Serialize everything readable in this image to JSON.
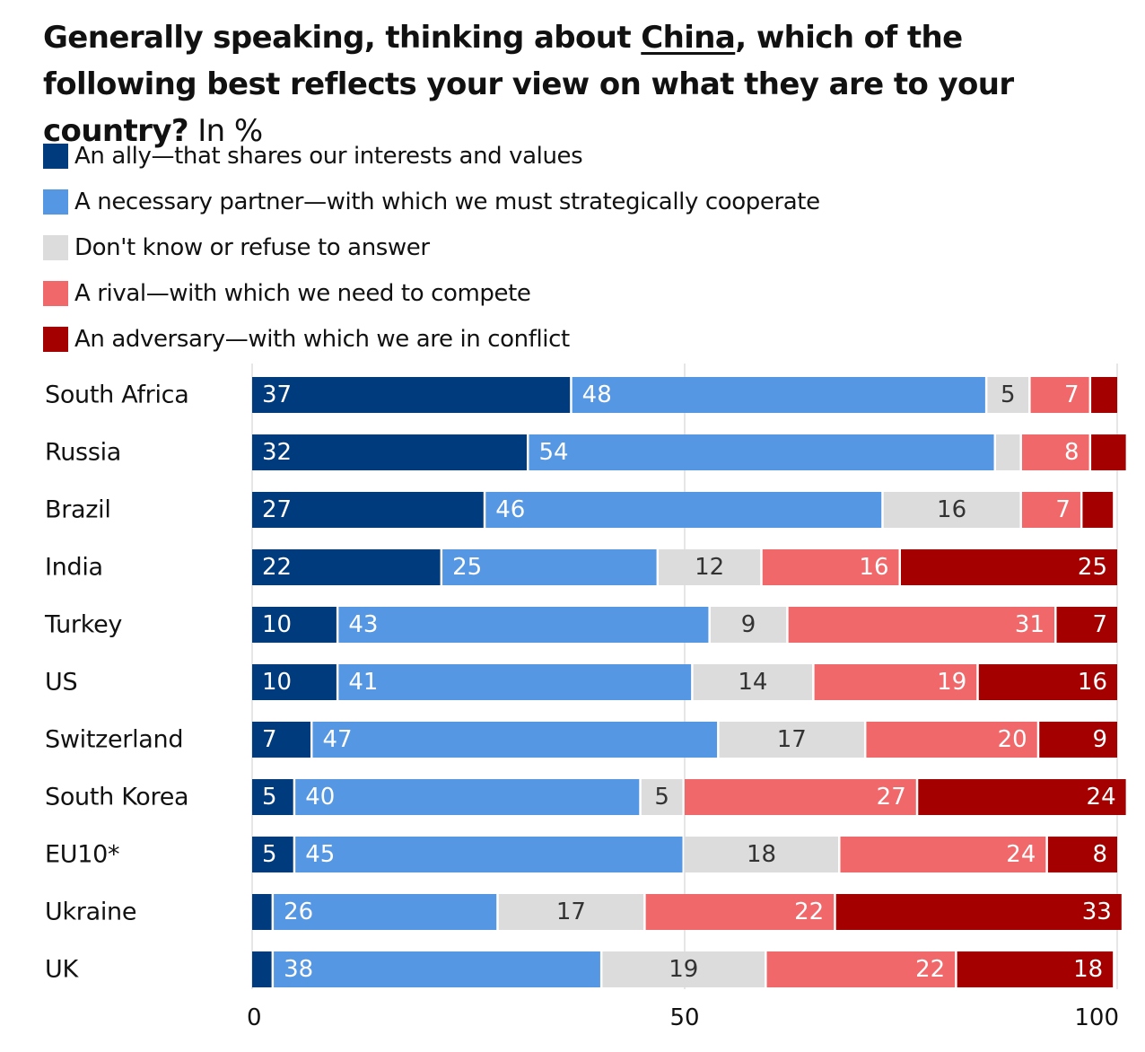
{
  "chart_data": {
    "type": "bar",
    "orientation": "horizontal",
    "stacked": true,
    "title_parts": {
      "before": "Generally speaking, thinking about ",
      "highlight": "China",
      "after": ", which of the following best reflects your view on what they are to your country?",
      "unit": " In %"
    },
    "categories": [
      "South Africa",
      "Russia",
      "Brazil",
      "India",
      "Turkey",
      "US",
      "Switzerland",
      "South Korea",
      "EU10*",
      "Ukraine",
      "UK"
    ],
    "series": [
      {
        "name": "An ally—that shares our interests and values",
        "color": "#003b7e",
        "text_color": "#ffffff",
        "align": "start",
        "values": [
          37,
          32,
          27,
          22,
          10,
          10,
          7,
          5,
          5,
          2.5,
          2.5
        ],
        "labels": [
          "37",
          "32",
          "27",
          "22",
          "10",
          "10",
          "7",
          "5",
          "5",
          "",
          ""
        ]
      },
      {
        "name": "A necessary partner—with which we must strategically cooperate",
        "color": "#5597e2",
        "text_color": "#ffffff",
        "align": "start",
        "values": [
          48,
          54,
          46,
          25,
          43,
          41,
          47,
          40,
          45,
          26,
          38
        ],
        "labels": [
          "48",
          "54",
          "46",
          "25",
          "43",
          "41",
          "47",
          "40",
          "45",
          "26",
          "38"
        ]
      },
      {
        "name": "Don't know or refuse to answer",
        "color": "#dcdcdc",
        "text_color": "#333333",
        "align": "middle",
        "values": [
          5,
          3,
          16,
          12,
          9,
          14,
          17,
          5,
          18,
          17,
          19
        ],
        "labels": [
          "5",
          "",
          "16",
          "12",
          "9",
          "14",
          "17",
          "5",
          "18",
          "17",
          "19"
        ]
      },
      {
        "name": "A rival—with which we need to compete",
        "color": "#f0686a",
        "text_color": "#ffffff",
        "align": "end",
        "values": [
          7,
          8,
          7,
          16,
          31,
          19,
          20,
          27,
          24,
          22,
          22
        ],
        "labels": [
          "7",
          "8",
          "7",
          "16",
          "31",
          "19",
          "20",
          "27",
          "24",
          "22",
          "22"
        ]
      },
      {
        "name": "An adversary—with which we are in conflict",
        "color": "#a50000",
        "text_color": "#ffffff",
        "align": "end",
        "values": [
          3,
          4,
          3.5,
          25,
          7,
          16,
          9,
          24,
          8,
          33,
          18
        ],
        "labels": [
          "",
          "",
          "",
          "25",
          "7",
          "16",
          "9",
          "24",
          "8",
          "33",
          "18"
        ]
      }
    ],
    "x_axis": {
      "range": [
        0,
        100
      ],
      "ticks": [
        0,
        50,
        100
      ],
      "tick_labels": [
        "0",
        "50",
        "100"
      ]
    },
    "grid": true,
    "legend_position": "top-left"
  }
}
